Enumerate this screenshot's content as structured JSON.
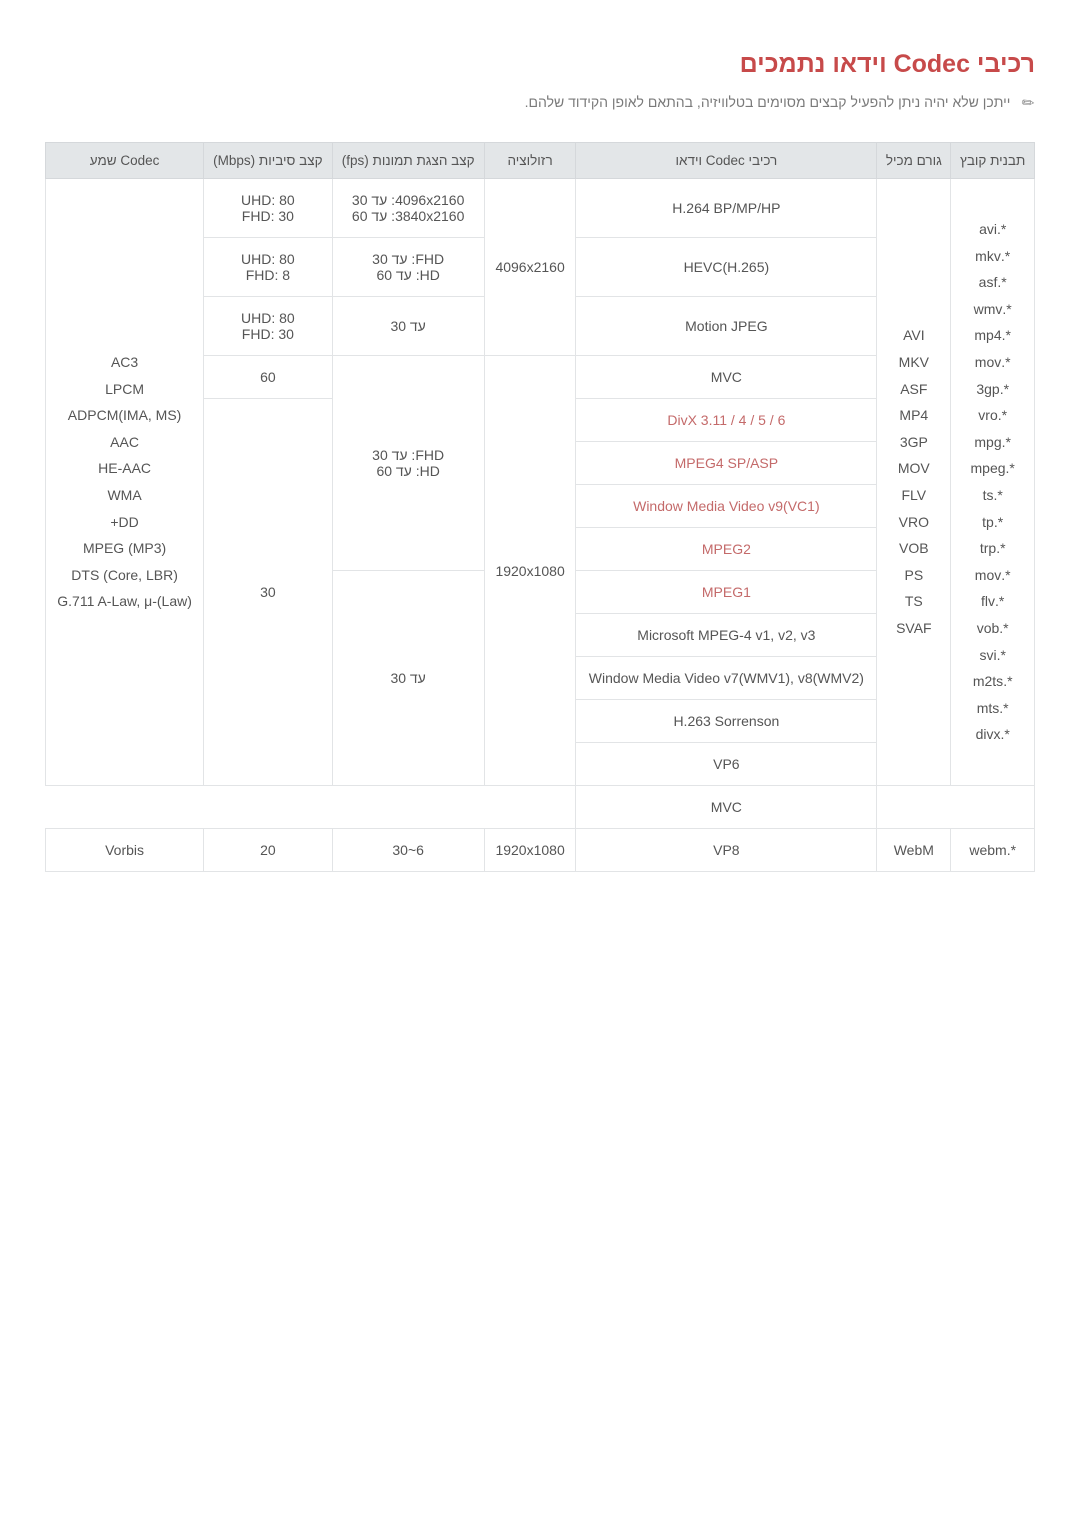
{
  "colors": {
    "heading": "#c74a4a",
    "header_bg": "#e3e6e8",
    "border": "#e2e4e6",
    "text": "#555555",
    "note": "#7a7a7a",
    "link_red": "#c46a6a"
  },
  "title": "רכיבי Codec וידאו נתמכים",
  "note": "ייתכן שלא יהיה ניתן להפעיל קבצים מסוימים בטלוויזיה, בהתאם לאופן הקידוד שלהם.",
  "headers": {
    "file_ext": "תבנית קובץ",
    "container": "גורם מכיל",
    "video_codec": "רכיבי Codec וידאו",
    "resolution": "רזולוציה",
    "frame_rate": "קצב הצגת תמונות (fps)",
    "bitrate": "קצב סיביות (Mbps)",
    "audio_codec": "Codec שמע"
  },
  "file_extensions": "*.avi\n*.mkv\n*.asf\n*.wmv\n*.mp4\n*.mov\n*.3gp\n*.vro\n*.mpg\n*.mpeg\n*.ts\n*.tp\n*.trp\n*.mov\n*.flv\n*.vob\n*.svi\n*.m2ts\n*.mts\n*.divx",
  "containers": "AVI\nMKV\nASF\nMP4\n3GP\nMOV\nFLV\nVRO\nVOB\nPS\nTS\nSVAF",
  "audio_codecs": "AC3\nLPCM\nADPCM(IMA, MS)\nAAC\nHE-AAC\nWMA\nDD+\nMPEG (MP3)\nDTS (Core, LBR)\nG.711 A-Law, μ-(Law)",
  "rows": {
    "h264": {
      "codec": "H.264 BP/MP/HP",
      "bitrate": "UHD: 80\nFHD: 30",
      "fps": "4096x2160: עד 30\n3840x2160: עד 60"
    },
    "hevc": {
      "codec": "HEVC(H.265)",
      "bitrate": "UHD: 80\nFHD: 8",
      "fps": "FHD: עד 30\nHD: עד 60"
    },
    "mjpeg": {
      "codec": "Motion JPEG",
      "bitrate": "UHD: 80\nFHD: 30",
      "fps": "עד 30"
    },
    "res4k": "4096x2160",
    "mvc": {
      "codec": "MVC",
      "bitrate": "60"
    },
    "divx": {
      "codec": "DivX 3.11 / 4 / 5 / 6"
    },
    "mpeg4": {
      "codec": "MPEG4 SP/ASP"
    },
    "wmv9": {
      "codec": "Window Media Video v9(VC1)"
    },
    "mpeg2": {
      "codec": "MPEG2"
    },
    "mpeg1": {
      "codec": "MPEG1"
    },
    "fps_fhd_hd": "FHD: עד 30\nHD: עד 60",
    "res1080": "1920x1080",
    "bitrate30": "30",
    "msmpeg4": {
      "codec": "Microsoft MPEG-4 v1, v2, v3"
    },
    "wmv78": {
      "codec": "Window Media Video v7(WMV1), v8(WMV2)"
    },
    "h263": {
      "codec": "H.263 Sorrenson"
    },
    "vp6": {
      "codec": "VP6"
    },
    "mvc2": {
      "codec": "MVC"
    },
    "fps_upto30": "עד 30",
    "vp8": {
      "codec": "VP8",
      "res": "1920x1080",
      "fps": "6~30",
      "bitrate": "20",
      "audio": "Vorbis",
      "container": "WebM",
      "ext": "*.webm"
    }
  }
}
